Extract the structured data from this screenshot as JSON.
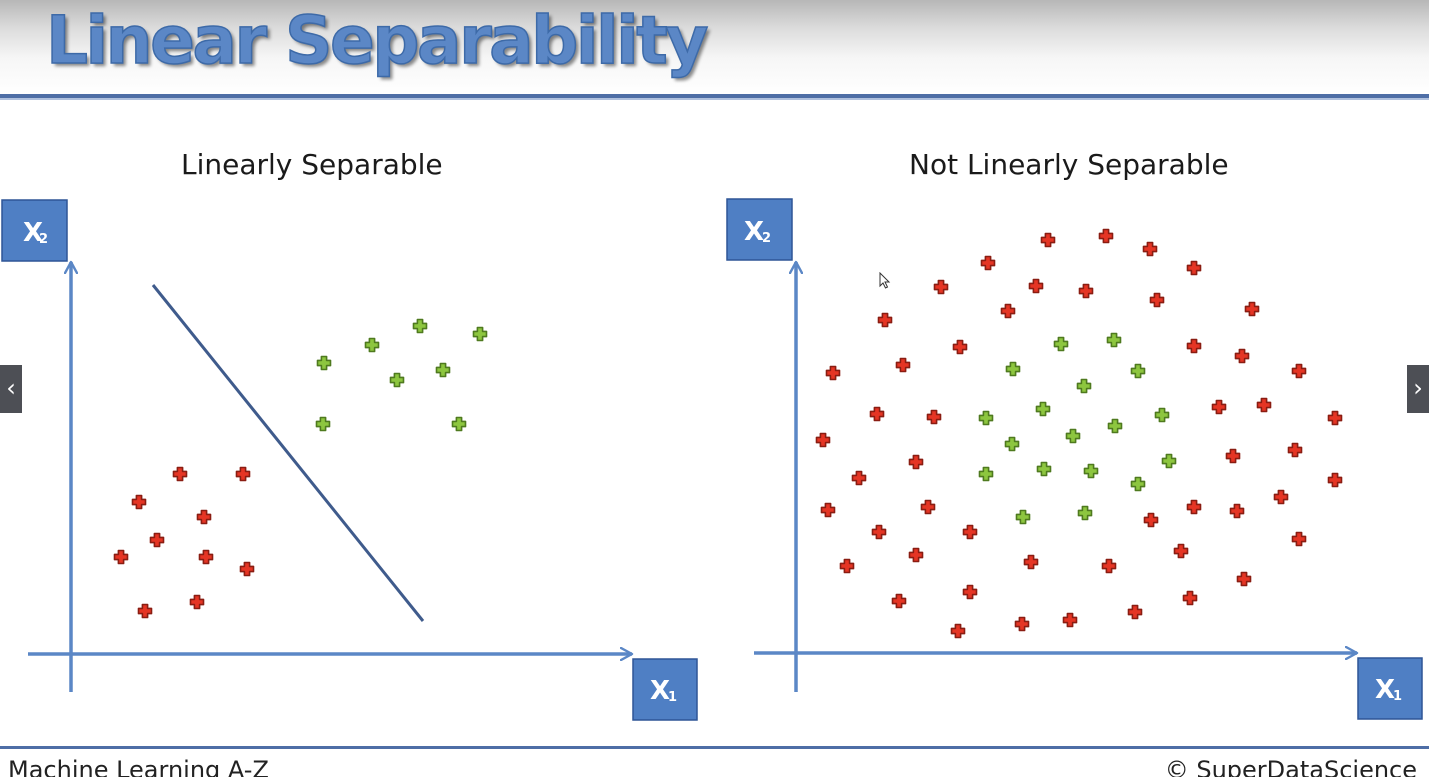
{
  "slide": {
    "title": "Linear Separability",
    "footer_left": "Machine Learning A-Z",
    "footer_right": "© SuperDataScience",
    "nav_prev_icon": "chevron-left-icon",
    "nav_next_icon": "chevron-right-icon",
    "nav_prev_glyph": "‹",
    "nav_next_glyph": "›"
  },
  "colors": {
    "title": "#5b87c6",
    "axis": "#5b87c6",
    "label_box": "#4f7fc4",
    "separator_line": "#3f5b8c",
    "class_red": "#e53524",
    "class_green": "#8dc63f"
  },
  "panels": [
    {
      "title": "Linearly Separable",
      "x_axis_label": {
        "main": "X",
        "sub": "1"
      },
      "y_axis_label": {
        "main": "X",
        "sub": "2"
      },
      "has_separator_line": true
    },
    {
      "title": "Not Linearly Separable",
      "x_axis_label": {
        "main": "X",
        "sub": "1"
      },
      "y_axis_label": {
        "main": "X",
        "sub": "2"
      },
      "has_separator_line": false
    }
  ]
}
